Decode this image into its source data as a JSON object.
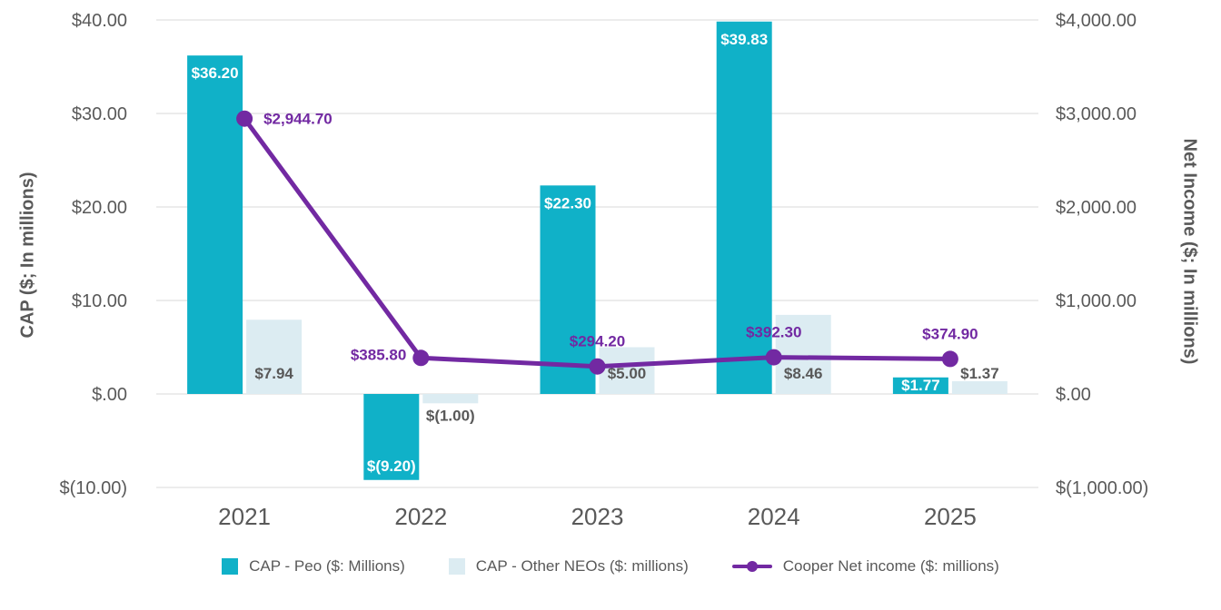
{
  "chart_data": {
    "type": "bar",
    "subtype": "combo-bar-line",
    "categories": [
      "2021",
      "2022",
      "2023",
      "2024",
      "2025"
    ],
    "series": [
      {
        "name": "CAP - Peo ($: Millions)",
        "type": "bar",
        "axis": "left",
        "color": "#10b1c8",
        "values": [
          36.2,
          -9.2,
          22.3,
          39.83,
          1.77
        ],
        "labels": [
          "$36.20",
          "$(9.20)",
          "$22.30",
          "$39.83",
          "$1.77"
        ],
        "label_color": "#ffffff"
      },
      {
        "name": "CAP - Other NEOs ($: millions)",
        "type": "bar",
        "axis": "left",
        "color": "#dcecf2",
        "values": [
          7.94,
          -1.0,
          5.0,
          8.46,
          1.37
        ],
        "labels": [
          "$7.94",
          "$(1.00)",
          "$5.00",
          "$8.46",
          "$1.37"
        ],
        "label_color": "#595959"
      },
      {
        "name": "Cooper Net income ($: millions)",
        "type": "line",
        "axis": "right",
        "color": "#7229a2",
        "values": [
          2944.7,
          385.8,
          294.2,
          392.3,
          374.9
        ],
        "labels": [
          "$2,944.70",
          "$385.80",
          "$294.20",
          "$392.30",
          "$374.90"
        ],
        "label_positions": [
          "right",
          "left",
          "above",
          "above",
          "above"
        ],
        "label_color": "#7229a2"
      }
    ],
    "axes": {
      "left": {
        "title": "CAP ($; In millions)",
        "range": [
          -10,
          40
        ],
        "ticks": [
          {
            "value": 40,
            "label": "$40.00"
          },
          {
            "value": 30,
            "label": "$30.00"
          },
          {
            "value": 20,
            "label": "$20.00"
          },
          {
            "value": 10,
            "label": "$10.00"
          },
          {
            "value": 0,
            "label": "$.00"
          },
          {
            "value": -10,
            "label": "$(10.00)"
          }
        ]
      },
      "right": {
        "title": "Net Income ($; In millions)",
        "range": [
          -1000,
          4000
        ],
        "ticks": [
          {
            "value": 4000,
            "label": "$4,000.00"
          },
          {
            "value": 3000,
            "label": "$3,000.00"
          },
          {
            "value": 2000,
            "label": "$2,000.00"
          },
          {
            "value": 1000,
            "label": "$1,000.00"
          },
          {
            "value": 0,
            "label": "$.00"
          },
          {
            "value": -1000,
            "label": "$(1,000.00)"
          }
        ]
      }
    },
    "title": "",
    "grid": true,
    "legend_position": "bottom",
    "style": {
      "grid_color": "#d9d9d9",
      "tick_text_color": "#595959",
      "category_text_color": "#595959",
      "background": "#ffffff"
    }
  }
}
